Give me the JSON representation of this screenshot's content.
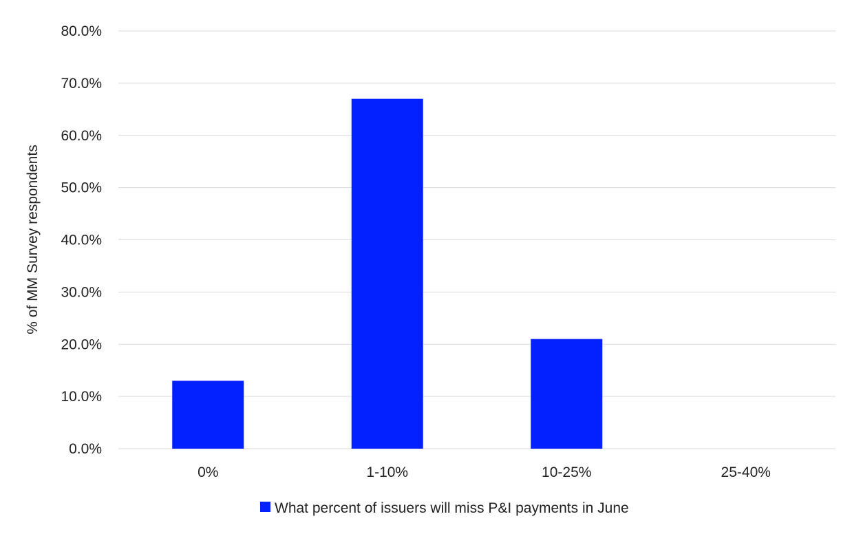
{
  "chart_data": {
    "type": "bar",
    "categories": [
      "0%",
      "1-10%",
      "10-25%",
      "25-40%"
    ],
    "series": [
      {
        "name": "What percent of issuers will miss P&I payments in June",
        "values": [
          13.0,
          67.0,
          21.0,
          0.0
        ],
        "color": "#0320FF"
      }
    ],
    "title": "",
    "xlabel": "",
    "ylabel": "% of MM Survey respondents",
    "ylim": [
      0,
      80
    ],
    "yticks": [
      "0.0%",
      "10.0%",
      "20.0%",
      "30.0%",
      "40.0%",
      "50.0%",
      "60.0%",
      "70.0%",
      "80.0%"
    ],
    "grid": true,
    "legend_position": "bottom"
  }
}
